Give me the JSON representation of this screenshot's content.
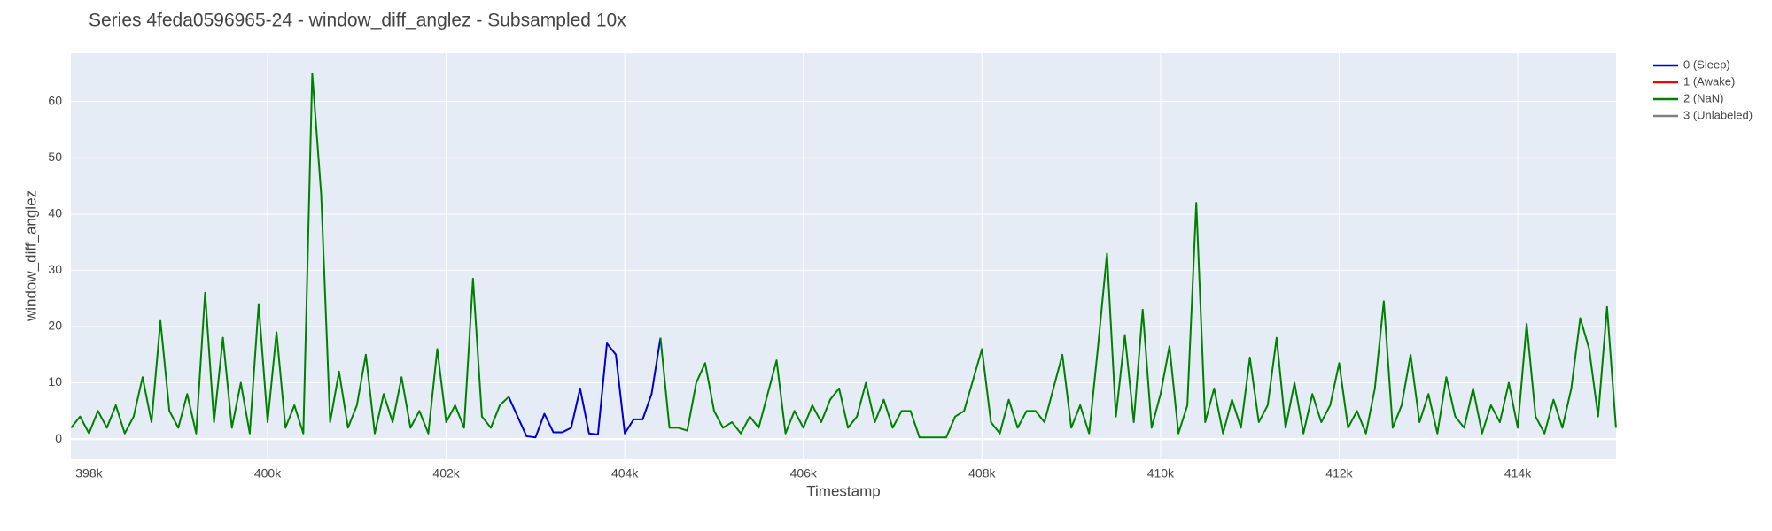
{
  "chart_data": {
    "type": "line",
    "title": "Series 4feda0596965-24 - window_diff_anglez - Subsampled 10x",
    "x_label": "Timestamp",
    "y_label": "window_diff_anglez",
    "xlim": [
      397797,
      415101
    ],
    "ylim": [
      -3.6,
      68.6
    ],
    "xticks": [
      {
        "value": 398000,
        "label": "398k"
      },
      {
        "value": 400000,
        "label": "400k"
      },
      {
        "value": 402000,
        "label": "402k"
      },
      {
        "value": 404000,
        "label": "404k"
      },
      {
        "value": 406000,
        "label": "406k"
      },
      {
        "value": 408000,
        "label": "408k"
      },
      {
        "value": 410000,
        "label": "410k"
      },
      {
        "value": 412000,
        "label": "412k"
      },
      {
        "value": 414000,
        "label": "414k"
      }
    ],
    "yticks": [
      0,
      10,
      20,
      30,
      40,
      50,
      60
    ],
    "grid": true,
    "legend": "right",
    "series": [
      {
        "name": "0 (Sleep)",
        "color": "#0000cc",
        "x": [
          402700,
          402800,
          402900,
          403000,
          403100,
          403200,
          403300,
          403400,
          403500,
          403600,
          403700,
          403800,
          403900,
          404000,
          404100,
          404200,
          404300,
          404400
        ],
        "values": [
          7.5,
          4,
          0.5,
          0.3,
          4.5,
          1.2,
          1.2,
          2,
          9,
          1,
          0.8,
          17,
          15,
          1,
          3.5,
          3.5,
          8,
          18
        ]
      },
      {
        "name": "1 (Awake)",
        "color": "#ff0000",
        "x": [],
        "values": []
      },
      {
        "name": "2 (NaN)",
        "color": "#008000",
        "x": [
          397800,
          397900,
          398000,
          398100,
          398200,
          398300,
          398400,
          398500,
          398600,
          398700,
          398800,
          398900,
          399000,
          399100,
          399200,
          399300,
          399400,
          399500,
          399600,
          399700,
          399800,
          399900,
          400000,
          400100,
          400200,
          400300,
          400400,
          400500,
          400600,
          400700,
          400800,
          400900,
          401000,
          401100,
          401200,
          401300,
          401400,
          401500,
          401600,
          401700,
          401800,
          401900,
          402000,
          402100,
          402200,
          402300,
          402400,
          402500,
          402600,
          402700,
          403500,
          404400,
          404500,
          404600,
          404700,
          404800,
          404900,
          405000,
          405100,
          405200,
          405300,
          405400,
          405500,
          405600,
          405700,
          405800,
          405900,
          406000,
          406100,
          406200,
          406300,
          406400,
          406500,
          406600,
          406700,
          406800,
          406900,
          407000,
          407100,
          407200,
          407300,
          407400,
          407500,
          407600,
          407700,
          407800,
          407900,
          408000,
          408100,
          408200,
          408300,
          408400,
          408500,
          408600,
          408700,
          408800,
          408900,
          409000,
          409100,
          409200,
          409300,
          409400,
          409500,
          409600,
          409700,
          409800,
          409900,
          410000,
          410100,
          410200,
          410300,
          410400,
          410500,
          410600,
          410700,
          410800,
          410900,
          411000,
          411100,
          411200,
          411300,
          411400,
          411500,
          411600,
          411700,
          411800,
          411900,
          412000,
          412100,
          412200,
          412300,
          412400,
          412500,
          412600,
          412700,
          412800,
          412900,
          413000,
          413100,
          413200,
          413300,
          413400,
          413500,
          413600,
          413700,
          413800,
          413900,
          414000,
          414100,
          414200,
          414300,
          414400,
          414500,
          414600,
          414700,
          414800,
          414900,
          415000,
          415100
        ],
        "values": [
          2,
          4,
          1,
          5,
          2,
          6,
          1,
          4,
          11,
          3,
          21,
          5,
          2,
          8,
          1,
          26,
          3,
          18,
          2,
          10,
          1,
          24,
          3,
          19,
          2,
          6,
          1,
          65,
          43.5,
          3,
          12,
          2,
          6,
          15,
          1,
          8,
          3,
          11,
          2,
          5,
          1,
          16,
          3,
          6,
          2,
          28.5,
          4,
          2,
          6,
          7.5,
          null,
          18,
          2,
          2,
          1.5,
          10,
          13.5,
          5,
          2,
          3,
          1,
          4,
          2,
          8,
          14,
          1,
          5,
          2,
          6,
          3,
          7,
          9,
          2,
          4,
          10,
          3,
          7,
          2,
          5,
          5,
          0.3,
          0.3,
          0.3,
          0.3,
          4,
          5,
          10.5,
          16,
          3,
          1,
          7,
          2,
          5,
          5,
          3,
          9,
          15,
          2,
          6,
          1,
          16.5,
          33,
          4,
          18.5,
          3,
          23,
          2,
          8,
          16.5,
          1,
          6,
          42,
          3,
          9,
          1,
          7,
          2,
          14.5,
          3,
          6,
          18,
          2,
          10,
          1,
          8,
          3,
          6,
          13.5,
          2,
          5,
          1,
          9,
          24.5,
          2,
          6,
          15,
          3,
          8,
          1,
          11,
          4,
          2,
          9,
          1,
          6,
          3,
          10,
          2,
          20.5,
          4,
          1,
          7,
          2,
          9,
          21.5,
          16,
          4,
          23.5,
          2
        ]
      },
      {
        "name": "3 (Unlabeled)",
        "color": "#808080",
        "x": [],
        "values": []
      }
    ]
  }
}
